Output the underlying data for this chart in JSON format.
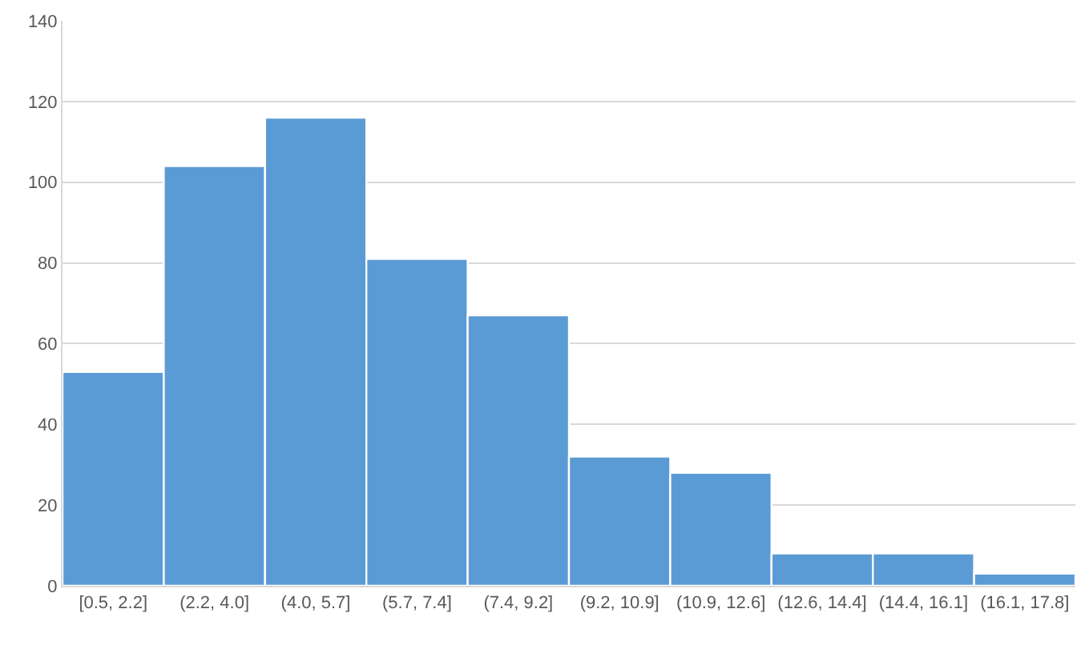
{
  "chart_data": {
    "type": "bar",
    "categories": [
      "[0.5, 2.2]",
      "(2.2, 4.0]",
      "(4.0, 5.7]",
      "(5.7, 7.4]",
      "(7.4, 9.2]",
      "(9.2, 10.9]",
      "(10.9, 12.6]",
      "(12.6, 14.4]",
      "(14.4, 16.1]",
      "(16.1, 17.8]"
    ],
    "values": [
      53,
      104,
      116,
      81,
      67,
      32,
      28,
      8,
      8,
      3
    ],
    "color": "#5b9bd5",
    "ylim": [
      0,
      140
    ],
    "yticks": [
      0,
      20,
      40,
      60,
      80,
      100,
      120,
      140
    ],
    "grid": "y"
  }
}
